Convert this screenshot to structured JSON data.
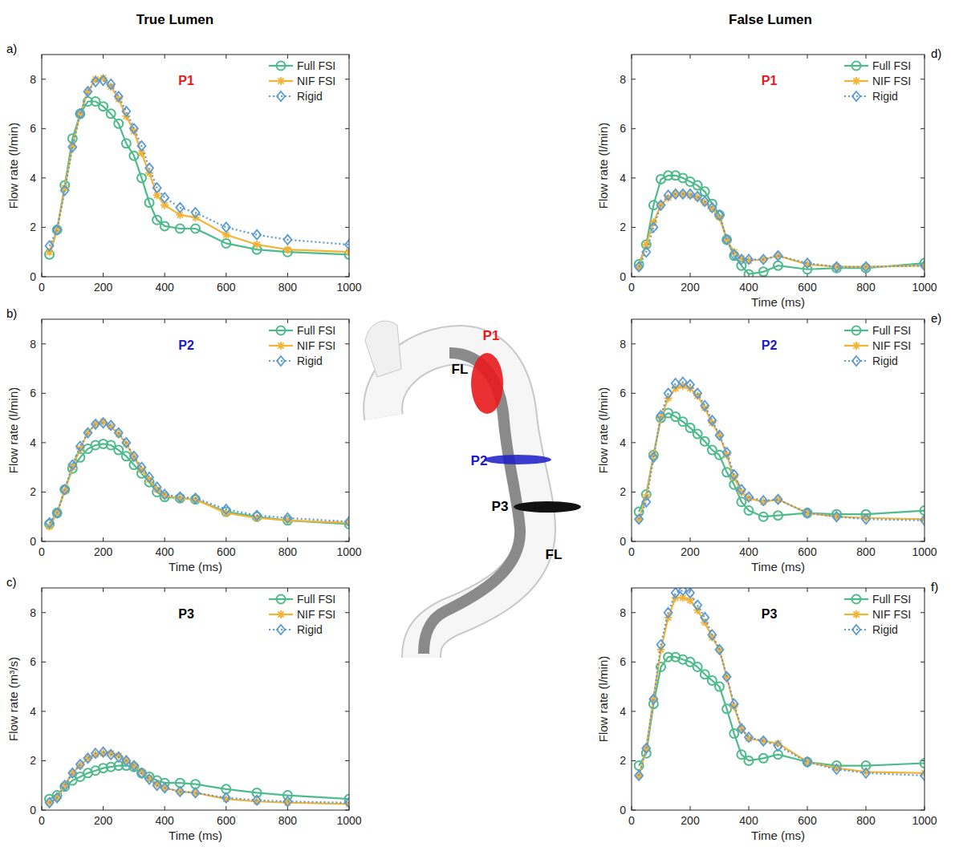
{
  "headers": [
    "True Lumen",
    "False Lumen"
  ],
  "diagram": {
    "labels": [
      "P1",
      "FL",
      "P2",
      "P3",
      "FL"
    ]
  },
  "chart_data": [
    {
      "type": "line",
      "panel": "a)",
      "title": "P1",
      "ylabel": "Flow rate (l/min)",
      "legend": "upper right",
      "xlim": [
        0,
        1000
      ],
      "xticks": [
        0,
        200,
        400,
        600,
        800,
        1000
      ],
      "ylim": [
        0,
        9
      ],
      "yticks": [
        0,
        2,
        4,
        6,
        8
      ],
      "x": [
        25,
        50,
        75,
        100,
        125,
        150,
        175,
        200,
        225,
        250,
        275,
        300,
        325,
        350,
        375,
        400,
        450,
        500,
        600,
        700,
        800,
        1000
      ],
      "series": [
        {
          "name": "Full FSI",
          "color": "#4dbb8c",
          "marker": "circle",
          "line_style": "solid",
          "values": [
            0.9,
            1.9,
            3.7,
            5.6,
            6.6,
            7.1,
            7.1,
            6.9,
            6.6,
            6.2,
            5.4,
            4.9,
            4.0,
            3.0,
            2.3,
            2.05,
            1.95,
            1.95,
            1.35,
            1.1,
            1.0,
            0.9
          ]
        },
        {
          "name": "NIF FSI",
          "color": "#f5b335",
          "marker": "asterisk",
          "line_style": "solid",
          "values": [
            1.0,
            1.9,
            3.6,
            5.3,
            6.6,
            7.5,
            8.0,
            8.05,
            7.7,
            7.2,
            6.5,
            5.9,
            5.0,
            4.2,
            3.3,
            2.9,
            2.5,
            2.4,
            1.7,
            1.3,
            1.1,
            1.0
          ]
        },
        {
          "name": "Rigid",
          "color": "#5b9bd5",
          "marker": "diamond",
          "line_style": "dotted",
          "values": [
            1.25,
            1.9,
            3.5,
            5.25,
            6.6,
            7.5,
            7.9,
            7.95,
            7.8,
            7.3,
            6.7,
            6.0,
            5.3,
            4.4,
            3.6,
            3.2,
            2.8,
            2.6,
            2.0,
            1.7,
            1.5,
            1.3
          ]
        }
      ]
    },
    {
      "type": "line",
      "panel": "b)",
      "title": "P2",
      "xlabel": "Time (ms)",
      "ylabel": "Flow rate (l/min)",
      "legend": "upper right",
      "xlim": [
        0,
        1000
      ],
      "xticks": [
        0,
        200,
        400,
        600,
        800,
        1000
      ],
      "ylim": [
        0,
        9
      ],
      "yticks": [
        0,
        2,
        4,
        6,
        8
      ],
      "x": [
        25,
        50,
        75,
        100,
        125,
        150,
        175,
        200,
        225,
        250,
        275,
        300,
        325,
        350,
        375,
        400,
        450,
        500,
        600,
        700,
        800,
        1000
      ],
      "series": [
        {
          "name": "Full FSI",
          "color": "#4dbb8c",
          "marker": "circle",
          "line_style": "solid",
          "values": [
            0.7,
            1.15,
            2.1,
            2.95,
            3.4,
            3.75,
            3.9,
            3.95,
            3.9,
            3.7,
            3.45,
            3.1,
            2.75,
            2.4,
            2.0,
            1.8,
            1.75,
            1.7,
            1.2,
            1.0,
            0.85,
            0.7
          ]
        },
        {
          "name": "NIF FSI",
          "color": "#f5b335",
          "marker": "asterisk",
          "line_style": "solid",
          "values": [
            0.6,
            1.15,
            2.05,
            3.0,
            3.75,
            4.4,
            4.75,
            4.85,
            4.65,
            4.35,
            3.95,
            3.4,
            2.9,
            2.5,
            2.1,
            1.85,
            1.75,
            1.7,
            1.15,
            0.95,
            0.85,
            0.75
          ]
        },
        {
          "name": "Rigid",
          "color": "#5b9bd5",
          "marker": "diamond",
          "line_style": "dotted",
          "values": [
            0.75,
            1.15,
            2.1,
            3.1,
            3.85,
            4.4,
            4.75,
            4.8,
            4.7,
            4.4,
            4.0,
            3.45,
            3.0,
            2.6,
            2.2,
            1.9,
            1.8,
            1.75,
            1.3,
            1.05,
            0.95,
            0.8
          ]
        }
      ]
    },
    {
      "type": "line",
      "panel": "c)",
      "title": "P3",
      "xlabel": "Time (ms)",
      "ylabel": "Flow rate (m³/s)",
      "legend": "upper right",
      "xlim": [
        0,
        1000
      ],
      "xticks": [
        0,
        200,
        400,
        600,
        800,
        1000
      ],
      "ylim": [
        0,
        9
      ],
      "yticks": [
        0,
        2,
        4,
        6,
        8
      ],
      "x": [
        25,
        50,
        75,
        100,
        125,
        150,
        175,
        200,
        225,
        250,
        275,
        300,
        325,
        350,
        375,
        400,
        450,
        500,
        600,
        700,
        800,
        1000
      ],
      "series": [
        {
          "name": "Full FSI",
          "color": "#4dbb8c",
          "marker": "circle",
          "line_style": "solid",
          "values": [
            0.45,
            0.6,
            0.95,
            1.2,
            1.35,
            1.5,
            1.6,
            1.7,
            1.75,
            1.8,
            1.8,
            1.75,
            1.5,
            1.35,
            1.2,
            1.1,
            1.1,
            1.05,
            0.85,
            0.7,
            0.6,
            0.45
          ]
        },
        {
          "name": "NIF FSI",
          "color": "#f5b335",
          "marker": "asterisk",
          "line_style": "solid",
          "values": [
            0.3,
            0.5,
            1.0,
            1.5,
            1.8,
            2.1,
            2.25,
            2.3,
            2.3,
            2.2,
            2.0,
            1.8,
            1.55,
            1.3,
            1.05,
            0.9,
            0.75,
            0.7,
            0.45,
            0.35,
            0.3,
            0.25
          ]
        },
        {
          "name": "Rigid",
          "color": "#5b9bd5",
          "marker": "diamond",
          "line_style": "dotted",
          "values": [
            0.3,
            0.5,
            1.0,
            1.5,
            1.85,
            2.1,
            2.3,
            2.35,
            2.25,
            2.15,
            2.0,
            1.8,
            1.5,
            1.25,
            1.0,
            0.9,
            0.75,
            0.7,
            0.5,
            0.4,
            0.35,
            0.3
          ]
        }
      ]
    },
    {
      "type": "line",
      "panel": "d)",
      "title": "P1",
      "xlabel": "Time (ms)",
      "ylabel": "Flow rate (l/min)",
      "legend": "upper right",
      "xlim": [
        0,
        1000
      ],
      "xticks": [
        0,
        200,
        400,
        600,
        800,
        1000
      ],
      "ylim": [
        0,
        9
      ],
      "yticks": [
        0,
        2,
        4,
        6,
        8
      ],
      "x": [
        25,
        50,
        75,
        100,
        125,
        150,
        175,
        200,
        225,
        250,
        275,
        300,
        325,
        350,
        375,
        400,
        450,
        500,
        600,
        700,
        800,
        1000
      ],
      "series": [
        {
          "name": "Full FSI",
          "color": "#4dbb8c",
          "marker": "circle",
          "line_style": "solid",
          "values": [
            0.5,
            1.3,
            2.9,
            3.95,
            4.1,
            4.1,
            4.0,
            3.85,
            3.7,
            3.45,
            2.95,
            2.5,
            1.5,
            0.85,
            0.45,
            0.1,
            0.2,
            0.45,
            0.3,
            0.35,
            0.35,
            0.55
          ]
        },
        {
          "name": "NIF FSI",
          "color": "#f5b335",
          "marker": "asterisk",
          "line_style": "solid",
          "values": [
            0.4,
            1.3,
            2.2,
            2.9,
            3.2,
            3.35,
            3.35,
            3.3,
            3.2,
            3.0,
            2.75,
            2.4,
            1.5,
            1.0,
            0.75,
            0.65,
            0.7,
            0.85,
            0.5,
            0.4,
            0.4,
            0.45
          ]
        },
        {
          "name": "Rigid",
          "color": "#5b9bd5",
          "marker": "diamond",
          "line_style": "dotted",
          "values": [
            0.4,
            1.0,
            2.0,
            2.9,
            3.3,
            3.35,
            3.35,
            3.35,
            3.25,
            3.05,
            2.8,
            2.5,
            1.5,
            0.9,
            0.7,
            0.7,
            0.7,
            0.85,
            0.55,
            0.4,
            0.4,
            0.45
          ]
        }
      ]
    },
    {
      "type": "line",
      "panel": "e)",
      "title": "P2",
      "xlabel": "Time (ms)",
      "ylabel": "Flow rate (l/min)",
      "legend": "upper right",
      "xlim": [
        0,
        1000
      ],
      "xticks": [
        0,
        200,
        400,
        600,
        800,
        1000
      ],
      "ylim": [
        0,
        9
      ],
      "yticks": [
        0,
        2,
        4,
        6,
        8
      ],
      "x": [
        25,
        50,
        75,
        100,
        125,
        150,
        175,
        200,
        225,
        250,
        275,
        300,
        325,
        350,
        375,
        400,
        450,
        500,
        600,
        700,
        800,
        1000
      ],
      "series": [
        {
          "name": "Full FSI",
          "color": "#4dbb8c",
          "marker": "circle",
          "line_style": "solid",
          "values": [
            1.2,
            1.9,
            3.5,
            5.0,
            5.2,
            5.05,
            4.85,
            4.6,
            4.35,
            4.05,
            3.7,
            3.5,
            2.8,
            2.3,
            1.6,
            1.25,
            1.0,
            1.05,
            1.15,
            1.1,
            1.1,
            1.25
          ]
        },
        {
          "name": "NIF FSI",
          "color": "#f5b335",
          "marker": "asterisk",
          "line_style": "solid",
          "values": [
            0.9,
            1.8,
            3.5,
            5.0,
            5.8,
            6.2,
            6.3,
            6.2,
            5.9,
            5.4,
            4.8,
            4.3,
            3.5,
            2.6,
            2.0,
            1.75,
            1.6,
            1.7,
            1.15,
            1.0,
            0.95,
            0.9
          ]
        },
        {
          "name": "Rigid",
          "color": "#5b9bd5",
          "marker": "diamond",
          "line_style": "dotted",
          "values": [
            0.9,
            1.6,
            3.4,
            5.1,
            6.0,
            6.4,
            6.45,
            6.35,
            6.0,
            5.5,
            4.9,
            4.3,
            3.6,
            2.7,
            2.1,
            1.8,
            1.65,
            1.7,
            1.15,
            1.0,
            0.9,
            0.85
          ]
        }
      ]
    },
    {
      "type": "line",
      "panel": "f)",
      "title": "P3",
      "xlabel": "Time (ms)",
      "ylabel": "Flow rate (l/min)",
      "legend": "upper right",
      "xlim": [
        0,
        1000
      ],
      "xticks": [
        0,
        200,
        400,
        600,
        800,
        1000
      ],
      "ylim": [
        0,
        9
      ],
      "yticks": [
        0,
        2,
        4,
        6,
        8
      ],
      "x": [
        25,
        50,
        75,
        100,
        125,
        150,
        175,
        200,
        225,
        250,
        275,
        300,
        325,
        350,
        375,
        400,
        450,
        500,
        600,
        700,
        800,
        1000
      ],
      "series": [
        {
          "name": "Full FSI",
          "color": "#4dbb8c",
          "marker": "circle",
          "line_style": "solid",
          "values": [
            1.8,
            2.3,
            4.3,
            5.8,
            6.2,
            6.2,
            6.1,
            6.0,
            5.8,
            5.5,
            5.25,
            5.0,
            4.1,
            3.1,
            2.25,
            2.0,
            2.1,
            2.25,
            1.95,
            1.8,
            1.8,
            1.9
          ]
        },
        {
          "name": "NIF FSI",
          "color": "#f5b335",
          "marker": "asterisk",
          "line_style": "solid",
          "values": [
            1.4,
            2.5,
            4.5,
            6.5,
            7.8,
            8.6,
            8.6,
            8.5,
            8.1,
            7.6,
            7.0,
            6.5,
            5.4,
            4.2,
            3.3,
            2.9,
            2.8,
            2.7,
            1.95,
            1.7,
            1.55,
            1.5
          ]
        },
        {
          "name": "Rigid",
          "color": "#5b9bd5",
          "marker": "diamond",
          "line_style": "dotted",
          "values": [
            1.4,
            2.5,
            4.5,
            6.7,
            8.0,
            8.8,
            8.9,
            8.8,
            8.3,
            7.8,
            7.1,
            6.5,
            5.4,
            4.3,
            3.3,
            2.95,
            2.8,
            2.6,
            1.95,
            1.65,
            1.5,
            1.4
          ]
        }
      ]
    }
  ]
}
